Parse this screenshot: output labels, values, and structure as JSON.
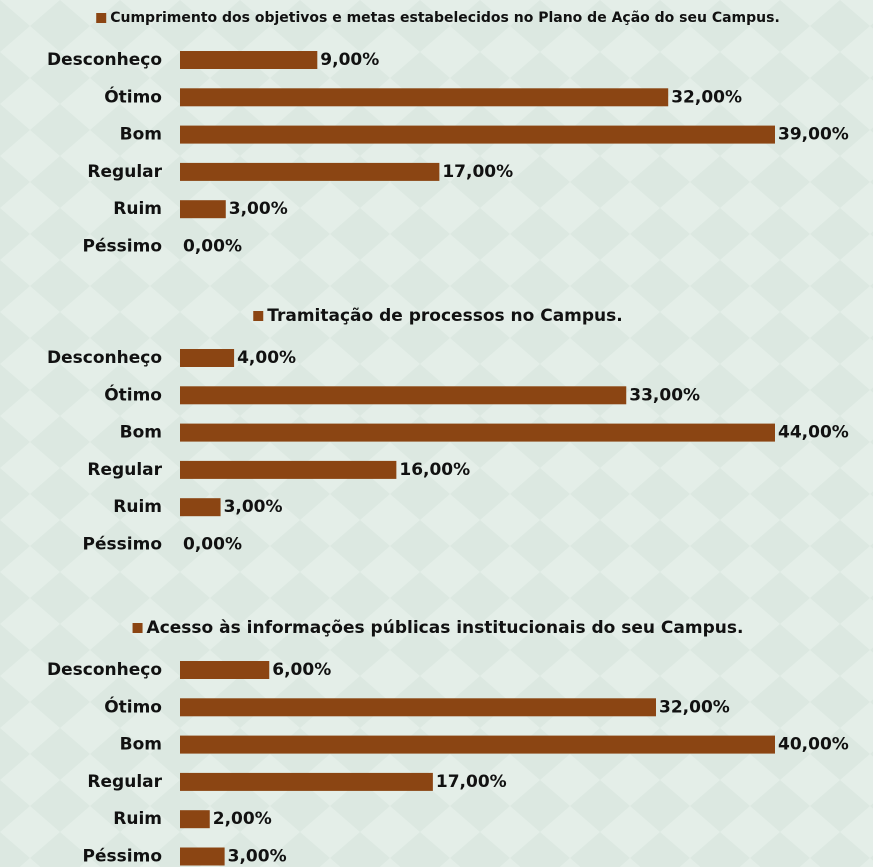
{
  "chart_data": [
    {
      "type": "bar",
      "categories": [
        "Desconheço",
        "Ótimo",
        "Bom",
        "Regular",
        "Ruim",
        "Péssimo"
      ],
      "series": [
        {
          "name": "Cumprimento dos objetivos e metas estabelecidos no Plano de Ação do seu Campus.",
          "color": "#8b4513",
          "values": [
            9,
            32,
            39,
            17,
            3,
            0
          ],
          "value_labels": [
            "9,00%",
            "32,00%",
            "39,00%",
            "17,00%",
            "3,00%",
            "0,00%"
          ]
        }
      ]
    },
    {
      "type": "bar",
      "categories": [
        "Desconheço",
        "Ótimo",
        "Bom",
        "Regular",
        "Ruim",
        "Péssimo"
      ],
      "series": [
        {
          "name": "Tramitação de processos no Campus.",
          "color": "#8b4513",
          "values": [
            4,
            33,
            44,
            16,
            3,
            0
          ],
          "value_labels": [
            "4,00%",
            "33,00%",
            "44,00%",
            "16,00%",
            "3,00%",
            "0,00%"
          ]
        }
      ]
    },
    {
      "type": "bar",
      "categories": [
        "Desconheço",
        "Ótimo",
        "Bom",
        "Regular",
        "Ruim",
        "Péssimo"
      ],
      "series": [
        {
          "name": "Acesso às informações públicas institucionais do seu Campus.",
          "color": "#8b4513",
          "values": [
            6,
            32,
            40,
            17,
            2,
            3
          ],
          "value_labels": [
            "6,00%",
            "32,00%",
            "40,00%",
            "17,00%",
            "2,00%",
            "3,00%"
          ]
        }
      ]
    }
  ]
}
